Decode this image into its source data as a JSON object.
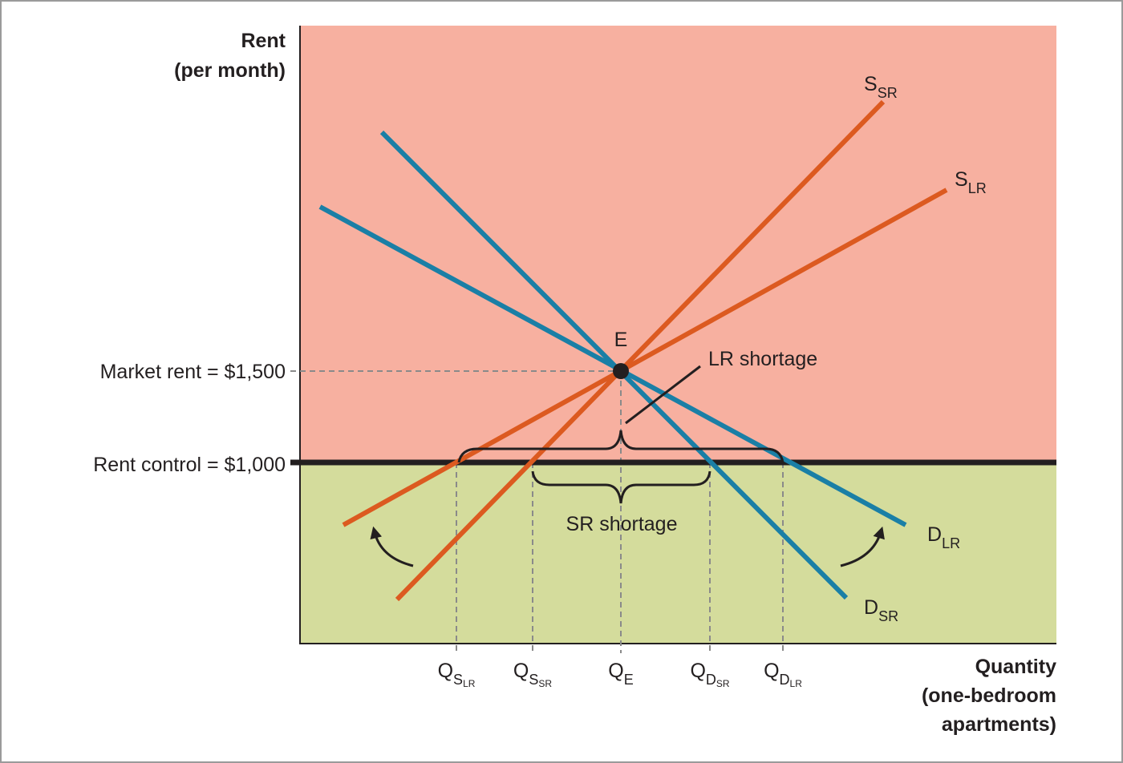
{
  "y_axis": {
    "lines": [
      "Rent",
      "(per month)"
    ]
  },
  "x_axis": {
    "lines": [
      "Quantity",
      "(one-bedroom",
      "apartments)"
    ]
  },
  "price_levels": [
    {
      "label": "Market rent = $1,500"
    },
    {
      "label": "Rent control = $1,000"
    }
  ],
  "equilibrium": {
    "label": "E"
  },
  "curves": [
    {
      "name": "S",
      "sub": "SR"
    },
    {
      "name": "S",
      "sub": "LR"
    },
    {
      "name": "D",
      "sub": "LR"
    },
    {
      "name": "D",
      "sub": "SR"
    }
  ],
  "quantities": [
    {
      "name": "Q",
      "sub": "S",
      "subsub": "LR"
    },
    {
      "name": "Q",
      "sub": "S",
      "subsub": "SR"
    },
    {
      "name": "Q",
      "sub": "E"
    },
    {
      "name": "Q",
      "sub": "D",
      "subsub": "SR"
    },
    {
      "name": "Q",
      "sub": "D",
      "subsub": "LR"
    }
  ],
  "annotations": {
    "lr_shortage": "LR shortage",
    "sr_shortage": "SR shortage"
  }
}
